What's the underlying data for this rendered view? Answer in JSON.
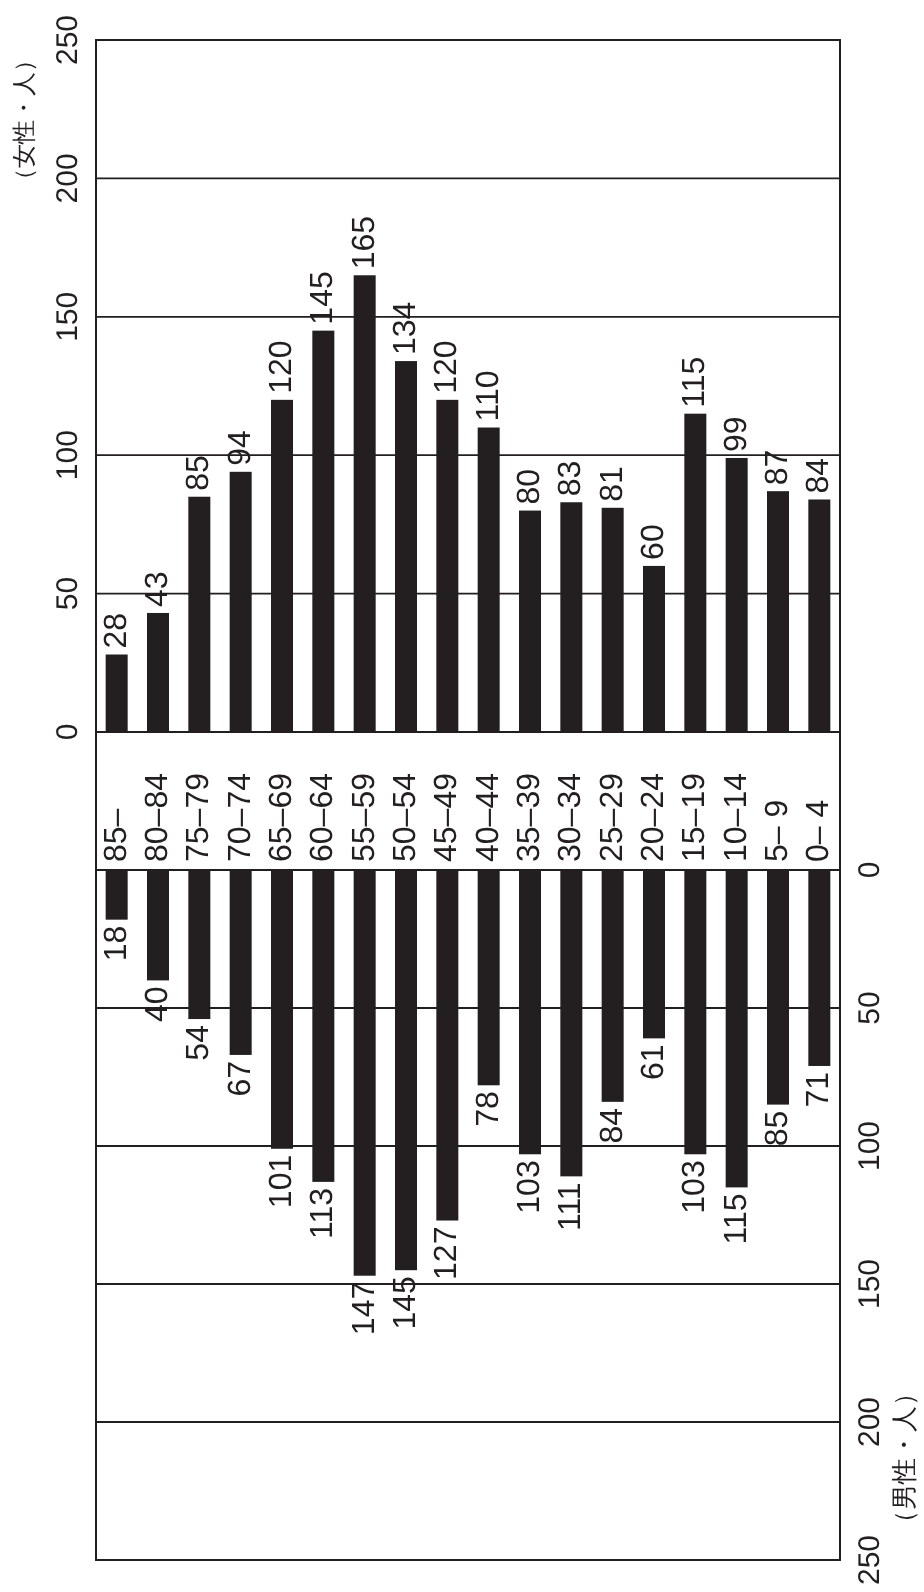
{
  "chart_data": [
    {
      "type": "bar",
      "categories": [
        "85–",
        "80–84",
        "75–79",
        "70–74",
        "65–69",
        "60–64",
        "55–59",
        "50–54",
        "45–49",
        "40–44",
        "35–39",
        "30–34",
        "25–29",
        "20–24",
        "15–19",
        "10–14",
        "5– 9",
        "0– 4"
      ],
      "values": [
        28,
        43,
        85,
        94,
        120,
        145,
        165,
        134,
        120,
        110,
        80,
        83,
        81,
        60,
        115,
        99,
        87,
        84
      ],
      "color": "#231f20",
      "ylabel": "（女性・人）",
      "ylim": [
        0,
        250
      ],
      "yticks": [
        0,
        50,
        100,
        150,
        200,
        250
      ],
      "grid": "y",
      "data_labels": true
    },
    {
      "type": "bar",
      "categories": [
        null,
        null,
        null,
        null,
        null,
        null,
        null,
        null,
        null,
        null,
        null,
        null,
        null,
        null,
        null,
        null,
        null,
        null
      ],
      "values": [
        18,
        40,
        54,
        67,
        101,
        113,
        147,
        145,
        127,
        78,
        103,
        111,
        84,
        61,
        103,
        115,
        85,
        71
      ],
      "color": "#231f20",
      "ylabel": "（男性・人）",
      "ylim": [
        250,
        0
      ],
      "yticks": [
        0,
        50,
        100,
        150,
        200,
        250
      ],
      "grid": "y",
      "data_labels": true,
      "tick_labels": "y"
    }
  ]
}
